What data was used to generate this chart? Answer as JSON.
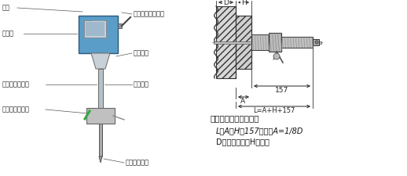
{
  "bg_color": "#ffffff",
  "label_color": "#222222",
  "line_color": "#555555",
  "fs_label": 6.0,
  "fs_formula": 7.0,
  "fs_formula_title": 7.5,
  "formula_line1": "插入深度的计算方法：",
  "formula_line2": "L＝A＋H＋157，通常A=1/8D",
  "formula_line3": "D为管道通径，H为壁厚",
  "label_mingpai": "铭牌",
  "label_xianshiping": "显示屏",
  "label_chuanganqi_tan": "传感器连接探杆",
  "label_chuanganqi_bujian": "传感器连接部件",
  "label_yonghu": "用户界面连接插头",
  "label_zhineng": "智能表头",
  "label_qiliu": "气流方向",
  "label_chuanganqi_nei": "传感器（内）",
  "dim_D": "D",
  "dim_H": "H",
  "dim_157": "157",
  "dim_A": "A",
  "dim_L": "L=A+H+157"
}
